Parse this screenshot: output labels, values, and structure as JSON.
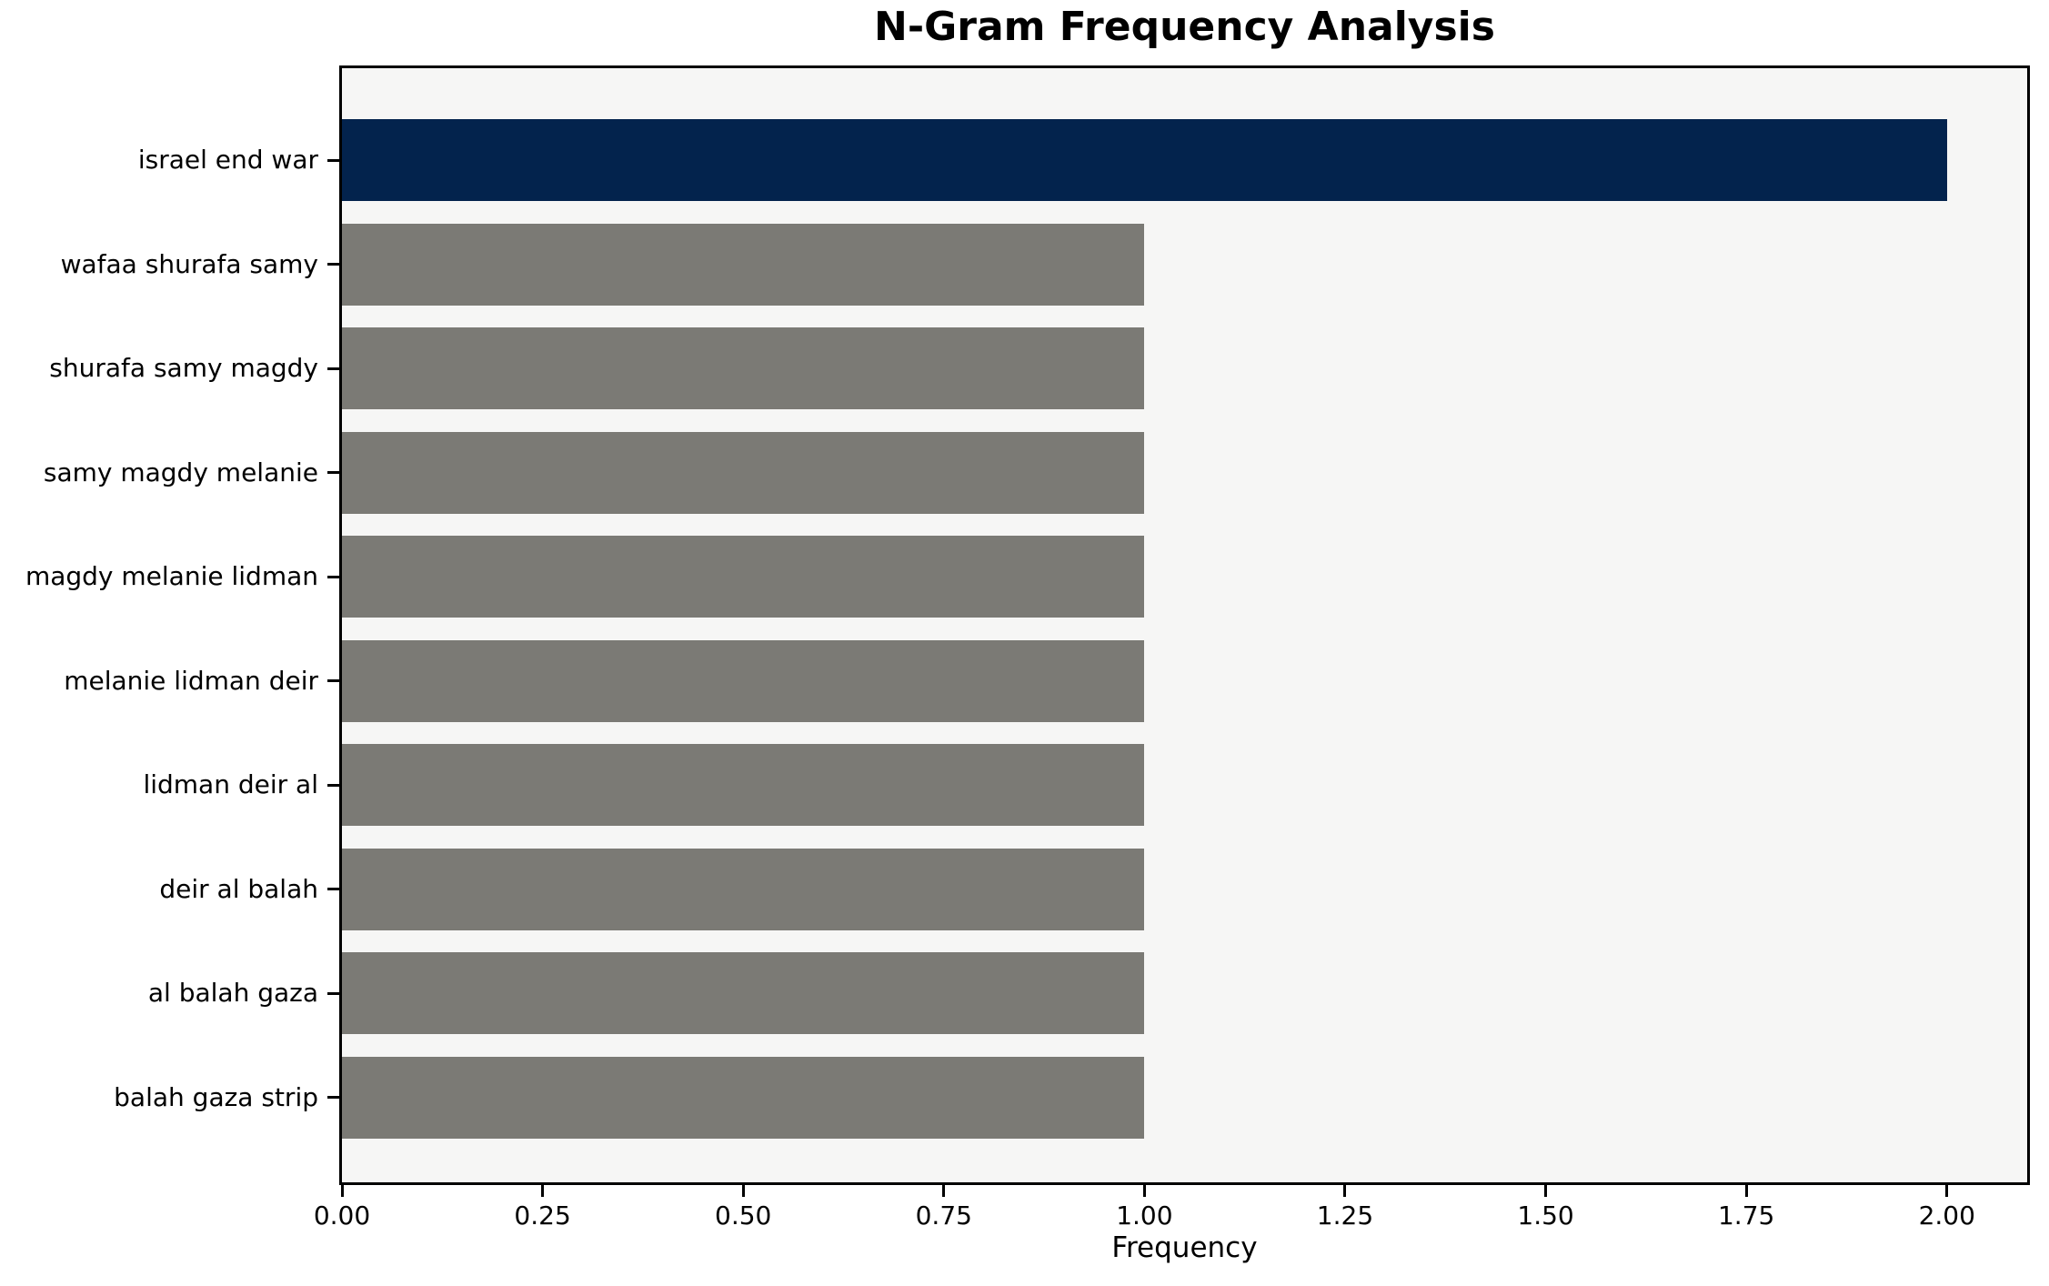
{
  "chart_data": {
    "type": "bar",
    "orientation": "horizontal",
    "title": "N-Gram Frequency Analysis",
    "xlabel": "Frequency",
    "ylabel": "",
    "categories": [
      "israel end war",
      "wafaa shurafa samy",
      "shurafa samy magdy",
      "samy magdy melanie",
      "magdy melanie lidman",
      "melanie lidman deir",
      "lidman deir al",
      "deir al balah",
      "al balah gaza",
      "balah gaza strip"
    ],
    "values": [
      2,
      1,
      1,
      1,
      1,
      1,
      1,
      1,
      1,
      1
    ],
    "bar_colors": [
      "#03234d",
      "#7b7a75",
      "#7b7a75",
      "#7b7a75",
      "#7b7a75",
      "#7b7a75",
      "#7b7a75",
      "#7b7a75",
      "#7b7a75",
      "#7b7a75"
    ],
    "xlim": [
      0,
      2.1
    ],
    "xticks": [
      0,
      0.25,
      0.5,
      0.75,
      1.0,
      1.25,
      1.5,
      1.75,
      2.0
    ],
    "xtick_labels": [
      "0.00",
      "0.25",
      "0.50",
      "0.75",
      "1.00",
      "1.25",
      "1.50",
      "1.75",
      "2.00"
    ],
    "grid": false,
    "legend": "none",
    "colors": {
      "highlight_bar": "#03234d",
      "default_bar": "#7b7a75",
      "plot_background": "#f6f6f5",
      "figure_background": "#ffffff",
      "axis": "#000000",
      "tick_label": "#000000"
    }
  }
}
